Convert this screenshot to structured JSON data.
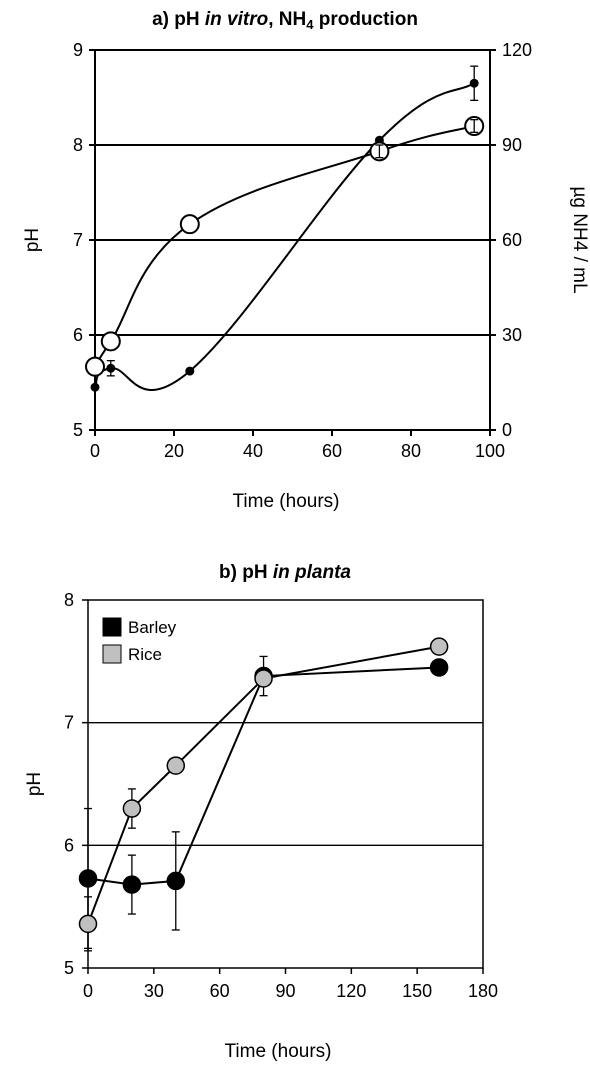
{
  "chart_data": [
    {
      "type": "line",
      "title_parts": [
        {
          "text": "a) pH "
        },
        {
          "text": "in vitro",
          "italic": true
        },
        {
          "text": ", NH"
        },
        {
          "text": "4",
          "subscript": true
        },
        {
          "text": " production"
        }
      ],
      "xlabel": "Time (hours)",
      "ylabel": "pH",
      "y2label": "µg NH4 / mL",
      "xlim": [
        0,
        100
      ],
      "ylim": [
        5,
        9
      ],
      "y2lim": [
        0,
        120
      ],
      "xticks": [
        "0",
        "20",
        "40",
        "60",
        "80",
        "100"
      ],
      "yticks": [
        "5",
        "6",
        "7",
        "8",
        "9"
      ],
      "y2ticks": [
        "0",
        "30",
        "60",
        "90",
        "120"
      ],
      "grid": true,
      "series": [
        {
          "axis": "y",
          "marker": "filled-small",
          "color": "#000000",
          "x": [
            0,
            4,
            24,
            72,
            96
          ],
          "y": [
            5.45,
            5.65,
            5.62,
            8.05,
            8.65
          ],
          "err": [
            0.0,
            0.08,
            0.0,
            0.0,
            0.18
          ]
        },
        {
          "axis": "y2",
          "marker": "open-large",
          "color": "#000000",
          "x": [
            0,
            4,
            24,
            72,
            96
          ],
          "y": [
            20,
            28,
            65,
            88,
            96
          ],
          "err": [
            0,
            0,
            0,
            2,
            2
          ]
        }
      ]
    },
    {
      "type": "line",
      "title_parts": [
        {
          "text": "b) pH "
        },
        {
          "text": "in planta",
          "italic": true
        }
      ],
      "xlabel": "Time (hours)",
      "ylabel": "pH",
      "xlim": [
        0,
        180
      ],
      "ylim": [
        5,
        8
      ],
      "xticks": [
        "0",
        "30",
        "60",
        "90",
        "120",
        "150",
        "180"
      ],
      "yticks": [
        "5",
        "6",
        "7",
        "8"
      ],
      "grid": true,
      "legend_position": "top-left",
      "series": [
        {
          "name": "Barley",
          "color": "#000000",
          "x": [
            0,
            20,
            40,
            80,
            160
          ],
          "y": [
            5.73,
            5.68,
            5.71,
            7.38,
            7.45
          ],
          "err": [
            0.57,
            0.24,
            0.4,
            0.16,
            0.05
          ]
        },
        {
          "name": "Rice",
          "color": "#c0c0c0",
          "x": [
            0,
            20,
            40,
            80,
            160
          ],
          "y": [
            5.36,
            6.3,
            6.65,
            7.36,
            7.62
          ],
          "err": [
            0.22,
            0.16,
            0.05,
            0.0,
            0.05
          ]
        }
      ]
    }
  ]
}
